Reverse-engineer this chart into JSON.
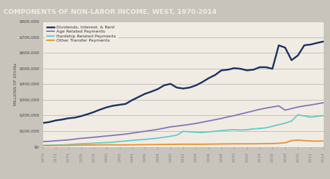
{
  "title": "COMPONENTS OF NON-LABOR INCOME, WEST, 1970-2014",
  "ylabel": "MILLIONS OF 2014$s",
  "title_bg_color": "#6b6b6b",
  "title_text_color": "#f0ece4",
  "plot_bg_color": "#f0ece4",
  "fig_bg_color": "#c8c4bc",
  "years": [
    1970,
    1971,
    1972,
    1973,
    1974,
    1975,
    1976,
    1977,
    1978,
    1979,
    1980,
    1981,
    1982,
    1983,
    1984,
    1985,
    1986,
    1987,
    1988,
    1989,
    1990,
    1991,
    1992,
    1993,
    1994,
    1995,
    1996,
    1997,
    1998,
    1999,
    2000,
    2001,
    2002,
    2003,
    2004,
    2005,
    2006,
    2007,
    2008,
    2009,
    2010,
    2011,
    2012,
    2013,
    2014
  ],
  "dividends": [
    152000,
    158000,
    168000,
    174000,
    182000,
    186000,
    196000,
    208000,
    222000,
    238000,
    252000,
    262000,
    268000,
    274000,
    298000,
    318000,
    338000,
    352000,
    368000,
    392000,
    402000,
    378000,
    372000,
    378000,
    392000,
    413000,
    438000,
    458000,
    488000,
    492000,
    502000,
    498000,
    488000,
    492000,
    508000,
    508000,
    498000,
    648000,
    633000,
    553000,
    583000,
    648000,
    653000,
    663000,
    672000
  ],
  "age_related": [
    33000,
    35000,
    38000,
    41000,
    44000,
    49000,
    54000,
    57000,
    61000,
    65000,
    69000,
    73000,
    77000,
    81000,
    87000,
    93000,
    99000,
    105000,
    111000,
    119000,
    127000,
    132000,
    137000,
    143000,
    149000,
    157000,
    165000,
    173000,
    181000,
    191000,
    199000,
    209000,
    219000,
    229000,
    239000,
    247000,
    254000,
    261000,
    234000,
    244000,
    254000,
    261000,
    267000,
    274000,
    281000
  ],
  "hardship": [
    9000,
    10000,
    11000,
    12000,
    14000,
    17000,
    19000,
    21000,
    23000,
    25000,
    27000,
    29000,
    34000,
    37000,
    41000,
    44000,
    47000,
    51000,
    55000,
    61000,
    67000,
    74000,
    99000,
    95000,
    93000,
    91000,
    95000,
    99000,
    103000,
    107000,
    109000,
    107000,
    109000,
    114000,
    117000,
    121000,
    131000,
    141000,
    151000,
    164000,
    204000,
    197000,
    189000,
    194000,
    199000
  ],
  "other_transfer": [
    7000,
    7500,
    8000,
    8500,
    9000,
    10000,
    10500,
    11000,
    11500,
    12000,
    12500,
    12500,
    12000,
    12000,
    12500,
    13000,
    13500,
    14000,
    14500,
    15000,
    15500,
    16000,
    16500,
    16500,
    16000,
    16500,
    17000,
    17500,
    18000,
    18500,
    19000,
    19000,
    19000,
    19000,
    19500,
    20000,
    21000,
    22000,
    26000,
    39000,
    43000,
    39000,
    37000,
    36000,
    37000
  ],
  "line_colors": [
    "#1c3461",
    "#8878b8",
    "#6ec8c8",
    "#e8923a"
  ],
  "legend_labels": [
    "Dividends, Interest, & Rent",
    "Age Related Payments",
    "Hardship Related Payments",
    "Other Transfer Payments"
  ],
  "ylim": [
    0,
    800000
  ],
  "yticks": [
    0,
    100000,
    200000,
    300000,
    400000,
    500000,
    600000,
    700000,
    800000
  ],
  "xtick_years": [
    1970,
    1972,
    1974,
    1976,
    1978,
    1980,
    1982,
    1984,
    1986,
    1988,
    1990,
    1992,
    1994,
    1996,
    1998,
    2000,
    2002,
    2004,
    2006,
    2008,
    2010,
    2012,
    2014
  ]
}
